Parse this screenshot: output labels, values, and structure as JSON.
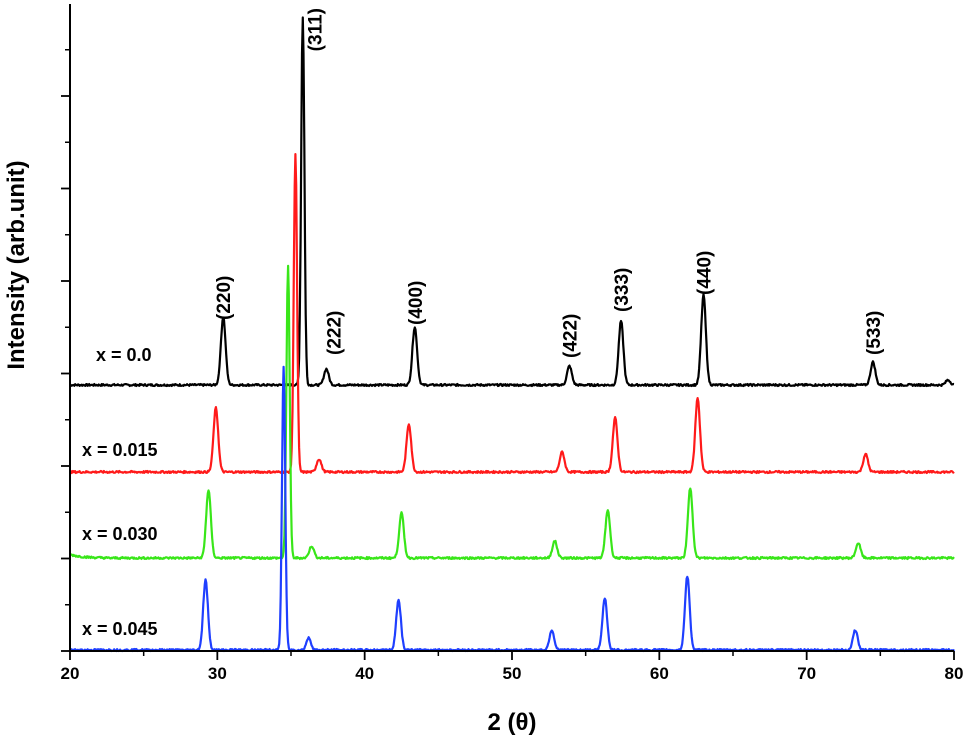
{
  "chart_data": {
    "type": "line",
    "xlabel": "2 (θ)",
    "ylabel": "Intensity (arb.unit)",
    "xlim": [
      20,
      80
    ],
    "x_ticks": [
      "20",
      "30",
      "40",
      "50",
      "60",
      "70",
      "80"
    ],
    "y_tick_labels": "none",
    "grid": false,
    "legend": "none",
    "series": [
      {
        "name": "x = 0.0",
        "color": "#000000",
        "baseline": 0,
        "peaks": [
          [
            30.4,
            68
          ],
          [
            35.8,
            368
          ],
          [
            37.4,
            16
          ],
          [
            43.4,
            58
          ],
          [
            53.9,
            19
          ],
          [
            57.4,
            64
          ],
          [
            63.0,
            90
          ],
          [
            74.5,
            23
          ],
          [
            79.6,
            5
          ]
        ]
      },
      {
        "name": "x = 0.015",
        "color": "#ff1a1a",
        "baseline": 0,
        "peaks": [
          [
            29.9,
            64
          ],
          [
            35.3,
            318
          ],
          [
            36.9,
            13
          ],
          [
            43.0,
            48
          ],
          [
            53.4,
            20
          ],
          [
            57.0,
            54
          ],
          [
            62.6,
            74
          ],
          [
            74.0,
            18
          ]
        ]
      },
      {
        "name": "x = 0.030",
        "color": "#39e619",
        "baseline": 0,
        "peaks": [
          [
            29.4,
            68
          ],
          [
            34.8,
            293
          ],
          [
            36.4,
            12
          ],
          [
            42.5,
            45
          ],
          [
            52.9,
            17
          ],
          [
            56.5,
            48
          ],
          [
            62.1,
            70
          ],
          [
            73.5,
            15
          ]
        ]
      },
      {
        "name": "x = 0.045",
        "color": "#1f3fff",
        "baseline": 0,
        "peaks": [
          [
            29.2,
            70
          ],
          [
            34.5,
            283
          ],
          [
            36.2,
            12
          ],
          [
            42.3,
            50
          ],
          [
            52.7,
            20
          ],
          [
            56.3,
            52
          ],
          [
            61.9,
            74
          ],
          [
            73.3,
            20
          ]
        ]
      }
    ],
    "annotations": [
      {
        "text": "(220)",
        "x": 30.4
      },
      {
        "text": "(311)",
        "x": 35.8
      },
      {
        "text": "(222)",
        "x": 37.4
      },
      {
        "text": "(400)",
        "x": 43.4
      },
      {
        "text": "(422)",
        "x": 53.9
      },
      {
        "text": "(333)",
        "x": 57.4
      },
      {
        "text": "(440)",
        "x": 63.0
      },
      {
        "text": "(533)",
        "x": 74.5
      }
    ]
  }
}
